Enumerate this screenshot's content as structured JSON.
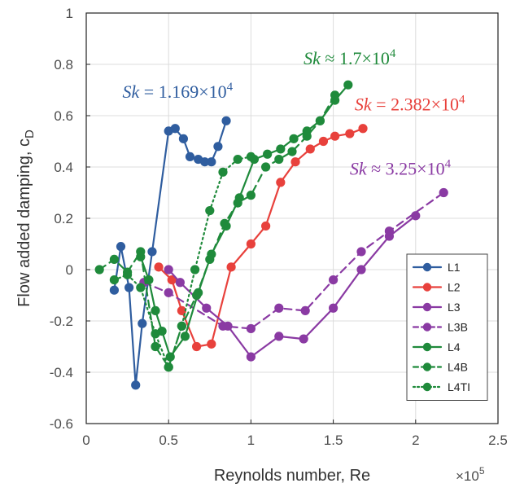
{
  "chart_data": {
    "type": "line",
    "xlabel": "Reynolds number, Re",
    "ylabel": "Flow added damping, c",
    "ylabel_sub": "D",
    "x_multiplier": "×10",
    "x_multiplier_exp": "5",
    "xlim": [
      0,
      2.5
    ],
    "ylim": [
      -0.6,
      1
    ],
    "xticks": [
      "0",
      "0.5",
      "1",
      "1.5",
      "2",
      "2.5"
    ],
    "yticks": [
      "-0.6",
      "-0.4",
      "-0.2",
      "0",
      "0.2",
      "0.4",
      "0.6",
      "0.8",
      "1"
    ],
    "legend_position": "bottom-right",
    "series": [
      {
        "name": "L1",
        "color": "#2f5d9f",
        "dash": "solid",
        "x": [
          0.17,
          0.21,
          0.26,
          0.3,
          0.34,
          0.4,
          0.5,
          0.54,
          0.59,
          0.63,
          0.68,
          0.72,
          0.76,
          0.8,
          0.85
        ],
        "y": [
          -0.08,
          0.09,
          -0.07,
          -0.45,
          -0.21,
          0.07,
          0.54,
          0.55,
          0.51,
          0.44,
          0.43,
          0.42,
          0.42,
          0.48,
          0.58
        ]
      },
      {
        "name": "L2",
        "color": "#e8413c",
        "dash": "solid",
        "x": [
          0.44,
          0.52,
          0.58,
          0.67,
          0.76,
          0.88,
          1.0,
          1.09,
          1.18,
          1.27,
          1.36,
          1.44,
          1.51,
          1.6,
          1.68
        ],
        "y": [
          0.01,
          -0.04,
          -0.16,
          -0.3,
          -0.29,
          0.01,
          0.1,
          0.17,
          0.34,
          0.42,
          0.47,
          0.5,
          0.52,
          0.53,
          0.55
        ]
      },
      {
        "name": "L3",
        "color": "#8a3aa3",
        "dash": "solid",
        "x": [
          0.5,
          0.57,
          0.73,
          0.86,
          1.0,
          1.17,
          1.32,
          1.5,
          1.67,
          1.84,
          2.0
        ],
        "y": [
          0.0,
          -0.05,
          -0.15,
          -0.22,
          -0.34,
          -0.26,
          -0.27,
          -0.15,
          0.0,
          0.13,
          0.21
        ]
      },
      {
        "name": "L3B",
        "color": "#8a3aa3",
        "dash": "dashed",
        "x": [
          0.35,
          0.5,
          0.83,
          1.0,
          1.17,
          1.33,
          1.5,
          1.67,
          1.84,
          2.17
        ],
        "y": [
          -0.05,
          -0.09,
          -0.22,
          -0.23,
          -0.15,
          -0.16,
          -0.04,
          0.07,
          0.15,
          0.3
        ]
      },
      {
        "name": "L4",
        "color": "#1f8a3b",
        "dash": "solid",
        "x": [
          0.33,
          0.38,
          0.42,
          0.46,
          0.51,
          0.6,
          0.68,
          0.76,
          0.85,
          0.93,
          1.02,
          1.1,
          1.18,
          1.26,
          1.34,
          1.42,
          1.51,
          1.59
        ],
        "y": [
          0.05,
          -0.04,
          -0.16,
          -0.24,
          -0.34,
          -0.26,
          -0.09,
          0.06,
          0.17,
          0.28,
          0.43,
          0.45,
          0.47,
          0.51,
          0.54,
          0.58,
          0.66,
          0.72
        ]
      },
      {
        "name": "L4B",
        "color": "#1f8a3b",
        "dash": "dashed",
        "x": [
          0.08,
          0.17,
          0.25,
          0.33,
          0.42,
          0.5,
          0.58,
          0.67,
          0.75,
          0.84,
          0.92,
          1.0,
          1.09,
          1.17,
          1.25,
          1.34,
          1.42,
          1.51
        ],
        "y": [
          0.0,
          0.04,
          -0.01,
          0.07,
          -0.3,
          -0.38,
          -0.22,
          -0.1,
          0.04,
          0.18,
          0.26,
          0.29,
          0.4,
          0.43,
          0.46,
          0.52,
          0.58,
          0.68
        ]
      },
      {
        "name": "L4TI",
        "color": "#1f8a3b",
        "dash": "dotted",
        "x": [
          0.17,
          0.25,
          0.33,
          0.42,
          0.5,
          0.58,
          0.66,
          0.75,
          0.83,
          0.92,
          1.0
        ],
        "y": [
          -0.04,
          -0.02,
          -0.07,
          -0.25,
          -0.38,
          -0.22,
          0.0,
          0.23,
          0.38,
          0.43,
          0.44
        ]
      }
    ],
    "annotations": [
      {
        "text": "Sk = 1.169×10",
        "sup": "4",
        "color": "#2f5d9f",
        "x": 0.22,
        "y": 0.67
      },
      {
        "text": "Sk ≈ 1.7×10",
        "sup": "4",
        "color": "#1f8a3b",
        "x": 1.32,
        "y": 0.8
      },
      {
        "text": "Sk = 2.382×10",
        "sup": "4",
        "color": "#e8413c",
        "x": 1.63,
        "y": 0.62
      },
      {
        "text": "Sk ≈ 3.25×10",
        "sup": "4",
        "color": "#8a3aa3",
        "x": 1.6,
        "y": 0.37
      }
    ]
  }
}
